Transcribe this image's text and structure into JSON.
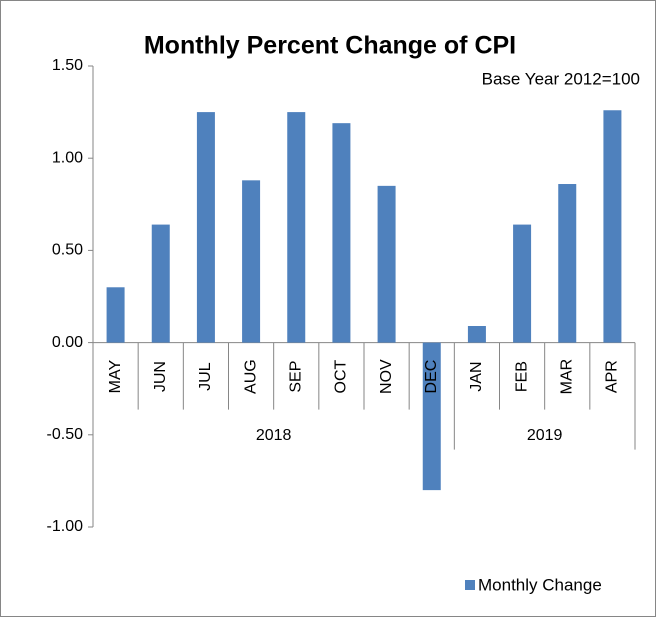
{
  "chart_data": {
    "type": "bar",
    "title": "Monthly Percent Change of CPI",
    "subtitle": "Base Year 2012=100",
    "categories": [
      "MAY",
      "JUN",
      "JUL",
      "AUG",
      "SEP",
      "OCT",
      "NOV",
      "DEC",
      "JAN",
      "FEB",
      "MAR",
      "APR"
    ],
    "category_groups": [
      {
        "label": "2018",
        "count": 8
      },
      {
        "label": "2019",
        "count": 4
      }
    ],
    "series": [
      {
        "name": "Monthly Change",
        "color": "#4f81bd",
        "values": [
          0.3,
          0.64,
          1.25,
          0.88,
          1.25,
          1.19,
          0.85,
          -0.8,
          0.09,
          0.64,
          0.86,
          1.26
        ]
      }
    ],
    "ylim": [
      -1.0,
      1.5
    ],
    "yticks": [
      {
        "value": 1.5,
        "label": "1.50"
      },
      {
        "value": 1.0,
        "label": "1.00"
      },
      {
        "value": 0.5,
        "label": "0.50"
      },
      {
        "value": 0.0,
        "label": "0.00"
      },
      {
        "value": -0.5,
        "label": "-0.50"
      },
      {
        "value": -1.0,
        "label": "-1.00"
      }
    ],
    "grid": false,
    "legend": "bottom-right"
  }
}
